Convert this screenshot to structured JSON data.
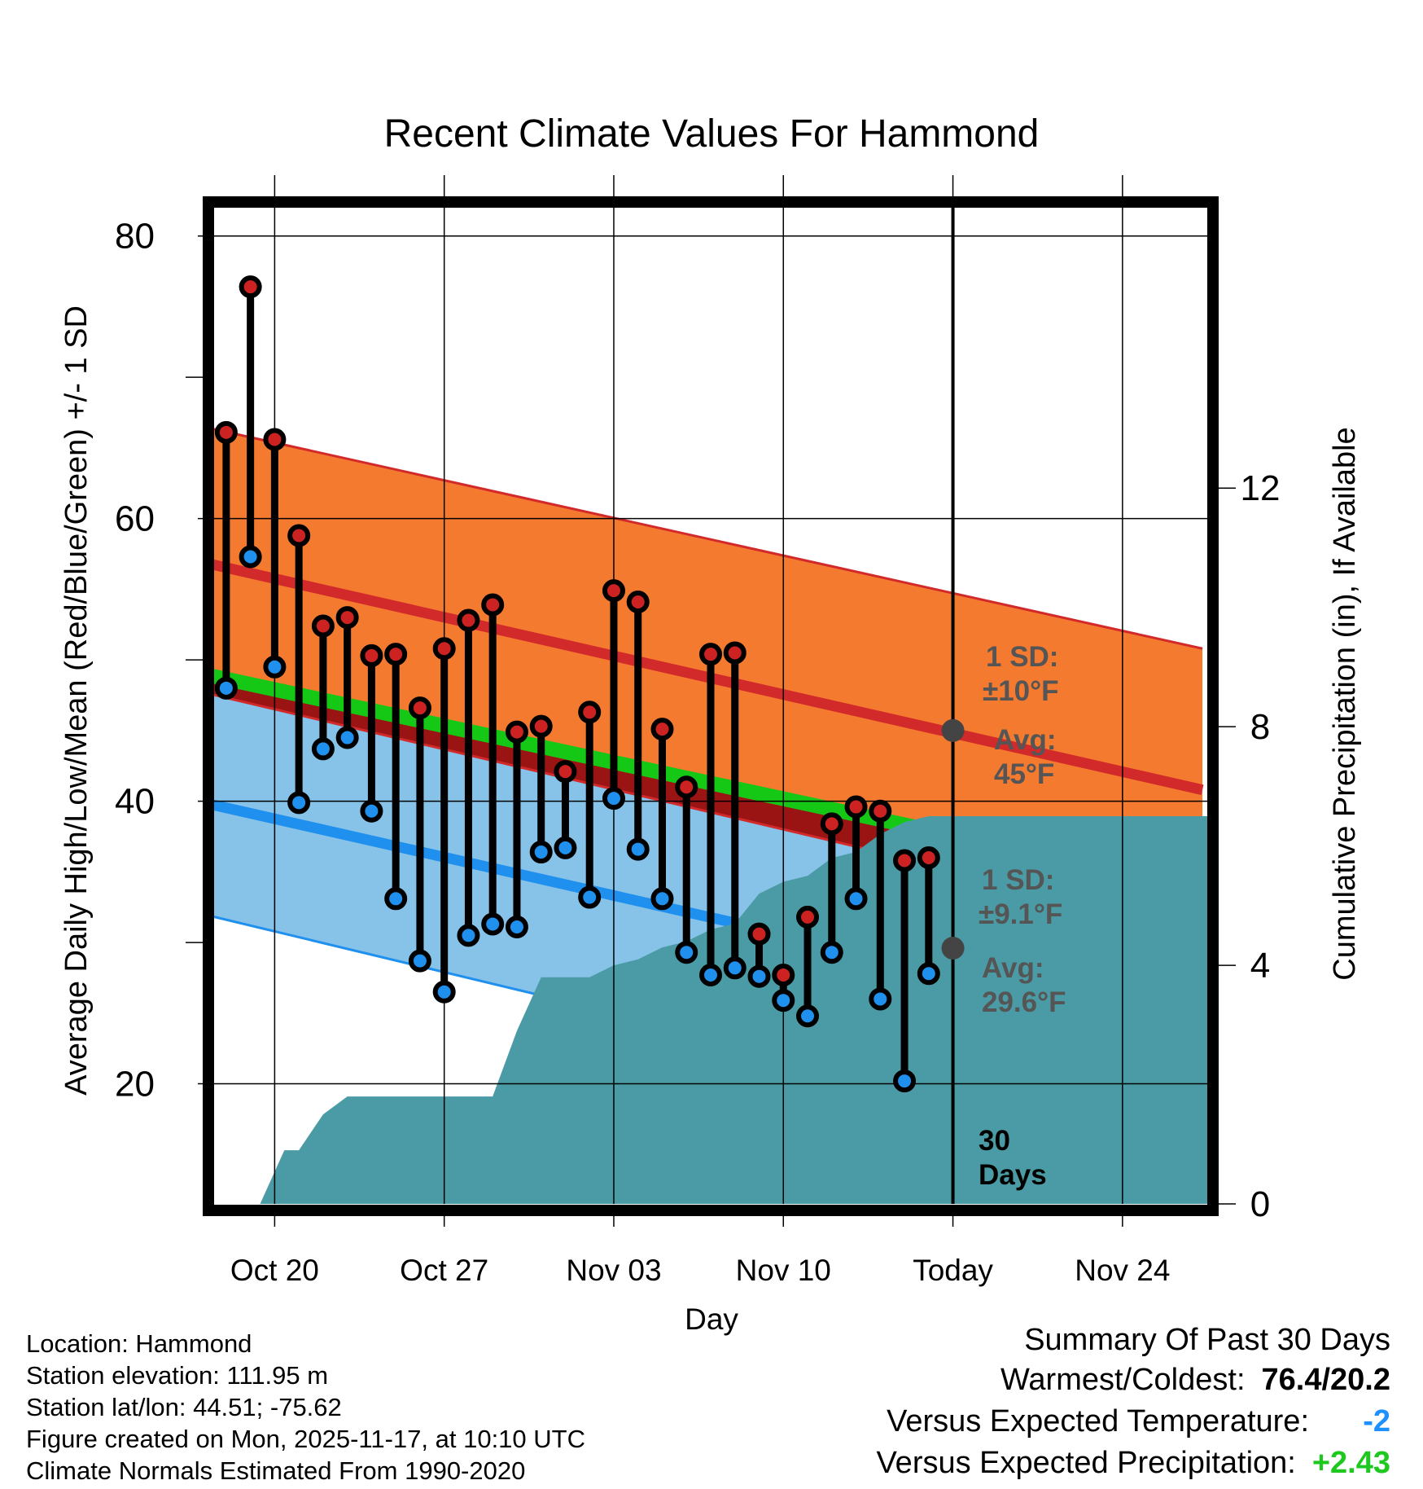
{
  "chart_data": {
    "type": "line",
    "title": "Recent Climate Values For Hammond",
    "xlabel": "Day",
    "ylabel": "Average Daily High/Low/Mean (Red/Blue/Green) +/- 1 SD",
    "y2label": "Cumulative Precipitation (in), If Available",
    "ylim": [
      11.5,
      82
    ],
    "y_ticks": [
      20,
      40,
      60,
      80
    ],
    "y_minor_ticks": [
      30,
      50,
      70
    ],
    "y2lim": [
      0,
      16.7
    ],
    "y2_ticks": [
      0,
      4,
      8,
      12
    ],
    "xlim": [
      -2.5,
      38.5
    ],
    "x_ticks": [
      {
        "day": 0,
        "label": "Oct 20"
      },
      {
        "day": 7,
        "label": "Oct 27"
      },
      {
        "day": 14,
        "label": "Nov 03"
      },
      {
        "day": 21,
        "label": "Nov 10"
      },
      {
        "day": 28,
        "label": "Today"
      },
      {
        "day": 35,
        "label": "Nov 24"
      }
    ],
    "normals": {
      "x": [
        -2.7,
        38.3
      ],
      "high_mean": [
        56.8,
        40.8
      ],
      "high_upper": [
        66.4,
        50.8
      ],
      "high_lower": [
        47.6,
        31.0
      ],
      "low_mean": [
        39.8,
        23.9
      ],
      "low_upper": [
        48.9,
        33.1
      ],
      "low_lower": [
        31.9,
        15.0
      ],
      "mean": [
        48.9,
        33.8
      ]
    },
    "series": [
      {
        "name": "Daily High",
        "color": "#cc2222",
        "x": [
          -2,
          -1,
          0,
          1,
          2,
          3,
          4,
          5,
          6,
          7,
          8,
          9,
          10,
          11,
          12,
          13,
          14,
          15,
          16,
          17,
          18,
          19,
          20,
          21,
          22,
          23,
          24,
          25,
          26,
          27
        ],
        "values": [
          66.1,
          76.4,
          65.6,
          58.8,
          52.4,
          53.0,
          50.3,
          50.4,
          46.6,
          50.8,
          52.8,
          53.9,
          44.9,
          45.3,
          42.1,
          46.3,
          54.9,
          54.1,
          45.1,
          41.0,
          50.4,
          50.5,
          30.6,
          27.7,
          31.8,
          38.4,
          39.6,
          39.3,
          35.8,
          36.0
        ]
      },
      {
        "name": "Daily Low",
        "color": "#2090ee",
        "x": [
          -2,
          -1,
          0,
          1,
          2,
          3,
          4,
          5,
          6,
          7,
          8,
          9,
          10,
          11,
          12,
          13,
          14,
          15,
          16,
          17,
          18,
          19,
          20,
          21,
          22,
          23,
          24,
          25,
          26,
          27
        ],
        "values": [
          48.0,
          57.3,
          49.5,
          39.9,
          43.7,
          44.5,
          39.3,
          33.1,
          28.7,
          26.5,
          30.5,
          31.3,
          31.1,
          36.4,
          36.7,
          33.2,
          40.2,
          36.6,
          33.1,
          29.3,
          27.7,
          28.2,
          27.6,
          25.9,
          24.8,
          29.3,
          33.1,
          26.0,
          20.2,
          27.8
        ]
      },
      {
        "name": "Cumulative Precipitation",
        "color": "#4a9ba5",
        "x": [
          -2.5,
          -0.6,
          0.4,
          1.0,
          2.0,
          3.0,
          7.0,
          9.0,
          10.0,
          11.0,
          13.0,
          14.0,
          15.0,
          16.0,
          17.0,
          18.0,
          19.0,
          20.0,
          21.0,
          22.0,
          23.0,
          24.0,
          25.0,
          26.0,
          27.0,
          28.0,
          38.5
        ],
        "values": [
          0,
          0,
          0.9,
          0.9,
          1.5,
          1.8,
          1.8,
          1.8,
          2.9,
          3.8,
          3.8,
          4.0,
          4.1,
          4.3,
          4.4,
          4.6,
          4.7,
          5.2,
          5.4,
          5.5,
          5.8,
          5.9,
          6.2,
          6.4,
          6.5,
          6.5,
          6.5
        ]
      }
    ],
    "annotations": {
      "high_sd_label": "1 SD:",
      "high_sd_value": "±10°F",
      "high_avg_label": "Avg:",
      "high_avg_value": "45°F",
      "high_avg": 45.0,
      "low_sd_label": "1 SD:",
      "low_sd_value": "±9.1°F",
      "low_avg_label": "Avg:",
      "low_avg_value": "29.6°F",
      "low_avg": 29.6,
      "days_num": "30",
      "days_word": "Days"
    }
  },
  "info": {
    "location": "Location: Hammond",
    "elevation": "Station elevation: 111.95 m",
    "latlon": "Station lat/lon: 44.51; -75.62",
    "created": "Figure created on Mon, 2025-11-17, at 10:10 UTC",
    "normals": "Climate Normals Estimated From 1990-2020"
  },
  "summary": {
    "title": "Summary Of Past 30 Days",
    "warm_label": "Warmest/Coldest:",
    "warm_value": "76.4/20.2",
    "temp_label": "Versus Expected Temperature:",
    "temp_value": "-2",
    "precip_label": "Versus Expected Precipitation:",
    "precip_value": "+2.43"
  },
  "colors": {
    "high_band": "#f47a30",
    "high_line": "#d22a2a",
    "low_band": "#87c3e8",
    "low_line": "#2090ee",
    "mean_line": "#16c816",
    "overlap": "#9a1414",
    "precip": "#4a9ba5"
  }
}
